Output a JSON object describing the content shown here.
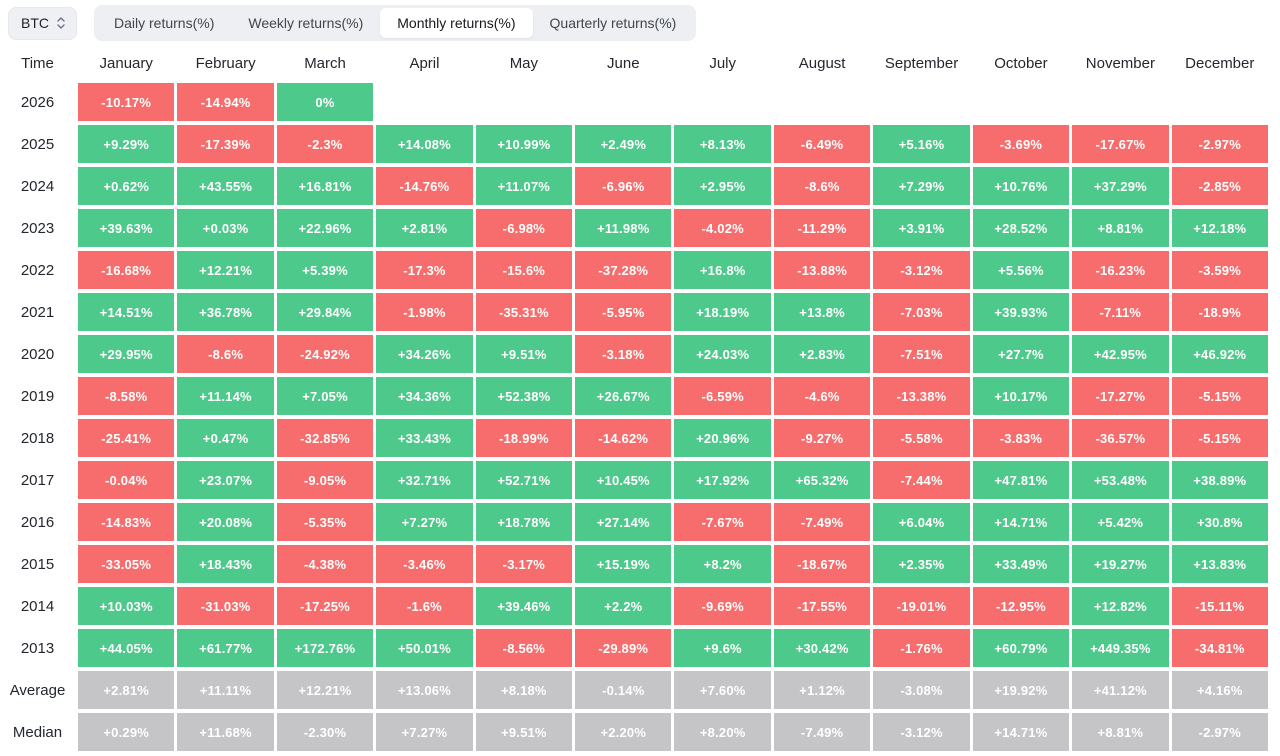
{
  "controls": {
    "symbol": "BTC",
    "tabs": [
      {
        "label": "Daily returns(%)",
        "active": false
      },
      {
        "label": "Weekly returns(%)",
        "active": false
      },
      {
        "label": "Monthly returns(%)",
        "active": true
      },
      {
        "label": "Quarterly returns(%)",
        "active": false
      }
    ]
  },
  "table": {
    "time_header": "Time",
    "months": [
      "January",
      "February",
      "March",
      "April",
      "May",
      "June",
      "July",
      "August",
      "September",
      "October",
      "November",
      "December"
    ],
    "rows": [
      {
        "time": "2026",
        "summary": false,
        "values": [
          "-10.17%",
          "-14.94%",
          "0%",
          "",
          "",
          "",
          "",
          "",
          "",
          "",
          "",
          ""
        ]
      },
      {
        "time": "2025",
        "summary": false,
        "values": [
          "+9.29%",
          "-17.39%",
          "-2.3%",
          "+14.08%",
          "+10.99%",
          "+2.49%",
          "+8.13%",
          "-6.49%",
          "+5.16%",
          "-3.69%",
          "-17.67%",
          "-2.97%"
        ]
      },
      {
        "time": "2024",
        "summary": false,
        "values": [
          "+0.62%",
          "+43.55%",
          "+16.81%",
          "-14.76%",
          "+11.07%",
          "-6.96%",
          "+2.95%",
          "-8.6%",
          "+7.29%",
          "+10.76%",
          "+37.29%",
          "-2.85%"
        ]
      },
      {
        "time": "2023",
        "summary": false,
        "values": [
          "+39.63%",
          "+0.03%",
          "+22.96%",
          "+2.81%",
          "-6.98%",
          "+11.98%",
          "-4.02%",
          "-11.29%",
          "+3.91%",
          "+28.52%",
          "+8.81%",
          "+12.18%"
        ]
      },
      {
        "time": "2022",
        "summary": false,
        "values": [
          "-16.68%",
          "+12.21%",
          "+5.39%",
          "-17.3%",
          "-15.6%",
          "-37.28%",
          "+16.8%",
          "-13.88%",
          "-3.12%",
          "+5.56%",
          "-16.23%",
          "-3.59%"
        ]
      },
      {
        "time": "2021",
        "summary": false,
        "values": [
          "+14.51%",
          "+36.78%",
          "+29.84%",
          "-1.98%",
          "-35.31%",
          "-5.95%",
          "+18.19%",
          "+13.8%",
          "-7.03%",
          "+39.93%",
          "-7.11%",
          "-18.9%"
        ]
      },
      {
        "time": "2020",
        "summary": false,
        "values": [
          "+29.95%",
          "-8.6%",
          "-24.92%",
          "+34.26%",
          "+9.51%",
          "-3.18%",
          "+24.03%",
          "+2.83%",
          "-7.51%",
          "+27.7%",
          "+42.95%",
          "+46.92%"
        ]
      },
      {
        "time": "2019",
        "summary": false,
        "values": [
          "-8.58%",
          "+11.14%",
          "+7.05%",
          "+34.36%",
          "+52.38%",
          "+26.67%",
          "-6.59%",
          "-4.6%",
          "-13.38%",
          "+10.17%",
          "-17.27%",
          "-5.15%"
        ]
      },
      {
        "time": "2018",
        "summary": false,
        "values": [
          "-25.41%",
          "+0.47%",
          "-32.85%",
          "+33.43%",
          "-18.99%",
          "-14.62%",
          "+20.96%",
          "-9.27%",
          "-5.58%",
          "-3.83%",
          "-36.57%",
          "-5.15%"
        ]
      },
      {
        "time": "2017",
        "summary": false,
        "values": [
          "-0.04%",
          "+23.07%",
          "-9.05%",
          "+32.71%",
          "+52.71%",
          "+10.45%",
          "+17.92%",
          "+65.32%",
          "-7.44%",
          "+47.81%",
          "+53.48%",
          "+38.89%"
        ]
      },
      {
        "time": "2016",
        "summary": false,
        "values": [
          "-14.83%",
          "+20.08%",
          "-5.35%",
          "+7.27%",
          "+18.78%",
          "+27.14%",
          "-7.67%",
          "-7.49%",
          "+6.04%",
          "+14.71%",
          "+5.42%",
          "+30.8%"
        ]
      },
      {
        "time": "2015",
        "summary": false,
        "values": [
          "-33.05%",
          "+18.43%",
          "-4.38%",
          "-3.46%",
          "-3.17%",
          "+15.19%",
          "+8.2%",
          "-18.67%",
          "+2.35%",
          "+33.49%",
          "+19.27%",
          "+13.83%"
        ]
      },
      {
        "time": "2014",
        "summary": false,
        "values": [
          "+10.03%",
          "-31.03%",
          "-17.25%",
          "-1.6%",
          "+39.46%",
          "+2.2%",
          "-9.69%",
          "-17.55%",
          "-19.01%",
          "-12.95%",
          "+12.82%",
          "-15.11%"
        ]
      },
      {
        "time": "2013",
        "summary": false,
        "values": [
          "+44.05%",
          "+61.77%",
          "+172.76%",
          "+50.01%",
          "-8.56%",
          "-29.89%",
          "+9.6%",
          "+30.42%",
          "-1.76%",
          "+60.79%",
          "+449.35%",
          "-34.81%"
        ]
      },
      {
        "time": "Average",
        "summary": true,
        "values": [
          "+2.81%",
          "+11.11%",
          "+12.21%",
          "+13.06%",
          "+8.18%",
          "-0.14%",
          "+7.60%",
          "+1.12%",
          "-3.08%",
          "+19.92%",
          "+41.12%",
          "+4.16%"
        ]
      },
      {
        "time": "Median",
        "summary": true,
        "values": [
          "+0.29%",
          "+11.68%",
          "-2.30%",
          "+7.27%",
          "+9.51%",
          "+2.20%",
          "+8.20%",
          "-7.49%",
          "-3.12%",
          "+14.71%",
          "+8.81%",
          "-2.97%"
        ]
      }
    ]
  },
  "colors": {
    "positive": "#4ec98c",
    "negative": "#f76d6d",
    "summary": "#c5c5c7",
    "cell_text": "#ffffff",
    "label_text": "#23272e"
  }
}
